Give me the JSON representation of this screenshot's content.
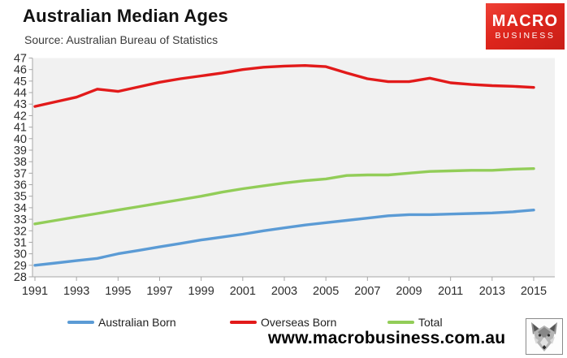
{
  "header": {
    "title": "Australian Median Ages",
    "subtitle": "Source: Australian Bureau of Statistics",
    "logo": {
      "line1": "MACRO",
      "line2": "BUSINESS",
      "bg_color": "#dd251c",
      "text_color": "#ffffff"
    }
  },
  "chart_data": {
    "type": "line",
    "title": "Australian Median Ages",
    "source_note": "Source: Australian Bureau of Statistics",
    "x": [
      1991,
      1992,
      1993,
      1994,
      1995,
      1996,
      1997,
      1998,
      1999,
      2000,
      2001,
      2002,
      2003,
      2004,
      2005,
      2006,
      2007,
      2008,
      2009,
      2010,
      2011,
      2012,
      2013,
      2014,
      2015
    ],
    "x_tick_labels": [
      "1991",
      "1993",
      "1995",
      "1997",
      "1999",
      "2001",
      "2003",
      "2005",
      "2007",
      "2009",
      "2011",
      "2013",
      "2015"
    ],
    "y_tick_labels": [
      "47",
      "46",
      "45",
      "44",
      "43",
      "42",
      "41",
      "40",
      "39",
      "38",
      "37",
      "36",
      "35",
      "34",
      "33",
      "32",
      "31",
      "30",
      "29",
      "28"
    ],
    "ylim": [
      28,
      47
    ],
    "grid": false,
    "plot_bg": "#f1f1f1",
    "axis_color": "#a6a6a6",
    "label_color": "#2e2e2e",
    "legend_position": "bottom",
    "series": [
      {
        "name": "Australian Born",
        "color": "#5b9bd5",
        "values": [
          29.0,
          29.2,
          29.4,
          29.6,
          30.0,
          30.3,
          30.6,
          30.9,
          31.2,
          31.45,
          31.7,
          32.0,
          32.25,
          32.5,
          32.7,
          32.9,
          33.1,
          33.3,
          33.4,
          33.4,
          33.45,
          33.5,
          33.55,
          33.65,
          33.8
        ]
      },
      {
        "name": "Overseas Born",
        "color": "#e21a1a",
        "values": [
          42.8,
          43.2,
          43.6,
          44.3,
          44.1,
          44.5,
          44.9,
          45.2,
          45.45,
          45.7,
          46.0,
          46.2,
          46.3,
          46.35,
          46.25,
          45.7,
          45.2,
          44.95,
          44.95,
          45.25,
          44.85,
          44.7,
          44.6,
          44.55,
          44.45
        ]
      },
      {
        "name": "Total",
        "color": "#92cd58",
        "values": [
          32.6,
          32.9,
          33.2,
          33.5,
          33.8,
          34.1,
          34.4,
          34.7,
          35.0,
          35.35,
          35.65,
          35.9,
          36.15,
          36.35,
          36.5,
          36.8,
          36.85,
          36.85,
          37.0,
          37.15,
          37.2,
          37.25,
          37.25,
          37.35,
          37.4
        ]
      }
    ]
  },
  "legend": {
    "items": [
      {
        "label": "Australian Born",
        "color": "#5b9bd5"
      },
      {
        "label": "Overseas Born",
        "color": "#e21a1a"
      },
      {
        "label": "Total",
        "color": "#92cd58"
      }
    ]
  },
  "footer": {
    "url": "www.macrobusiness.com.au",
    "wolf_logo_icon": "wolf-head-icon"
  }
}
